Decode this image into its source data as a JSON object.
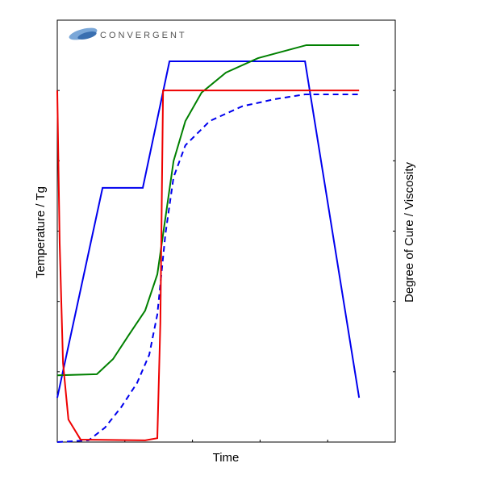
{
  "chart_data": {
    "type": "line",
    "logo": "CONVERGENT",
    "x_label": "Time",
    "y_label": "Temperature / Tg",
    "y2_label": "Degree of Cure / Viscosity",
    "xlim": [
      0,
      100
    ],
    "xticks": [
      20,
      40,
      60,
      80
    ],
    "ylim": [
      0,
      120
    ],
    "yticks": [
      20,
      40,
      60,
      80,
      100
    ],
    "y2lim": [
      0,
      120
    ],
    "y2ticks": [
      20,
      40,
      60,
      80,
      100
    ],
    "series": [
      {
        "color": "#0000ee",
        "dash": false,
        "x": [
          0,
          13.4,
          25.3,
          33.2,
          73.3,
          89.3
        ],
        "values": [
          12.6,
          72.3,
          72.3,
          108.3,
          108.3,
          12.6
        ]
      },
      {
        "color": "#008000",
        "dash": false,
        "x": [
          0,
          11.7,
          16.5,
          21.2,
          26.0,
          29.6,
          32.0,
          34.4,
          37.9,
          42.7,
          49.9,
          59.4,
          73.7,
          89.3
        ],
        "values": [
          19.0,
          19.3,
          23.6,
          30.5,
          37.4,
          47.7,
          63.8,
          79.9,
          91.3,
          99.4,
          105.1,
          109.2,
          112.9,
          112.9
        ]
      },
      {
        "color": "#0000ee",
        "dash": true,
        "axis": "y2",
        "x": [
          0,
          9.3,
          14.1,
          18.9,
          23.6,
          27.2,
          29.6,
          32.0,
          34.4,
          37.9,
          45.1,
          54.7,
          64.2,
          73.3,
          89.3
        ],
        "values": [
          0,
          0.5,
          4.1,
          9.9,
          16.8,
          24.8,
          36.3,
          59.2,
          75.3,
          84.4,
          91.3,
          95.5,
          97.5,
          98.9,
          98.9
        ]
      },
      {
        "color": "#ee0000",
        "dash": false,
        "axis": "y2",
        "x": [
          0,
          0.7,
          1.7,
          3.3,
          6.9,
          26.0,
          29.6,
          30.5,
          31.3,
          89.3
        ],
        "values": [
          100,
          56.9,
          22.5,
          6.4,
          0.7,
          0.5,
          1.1,
          34.0,
          100,
          100
        ]
      }
    ]
  }
}
